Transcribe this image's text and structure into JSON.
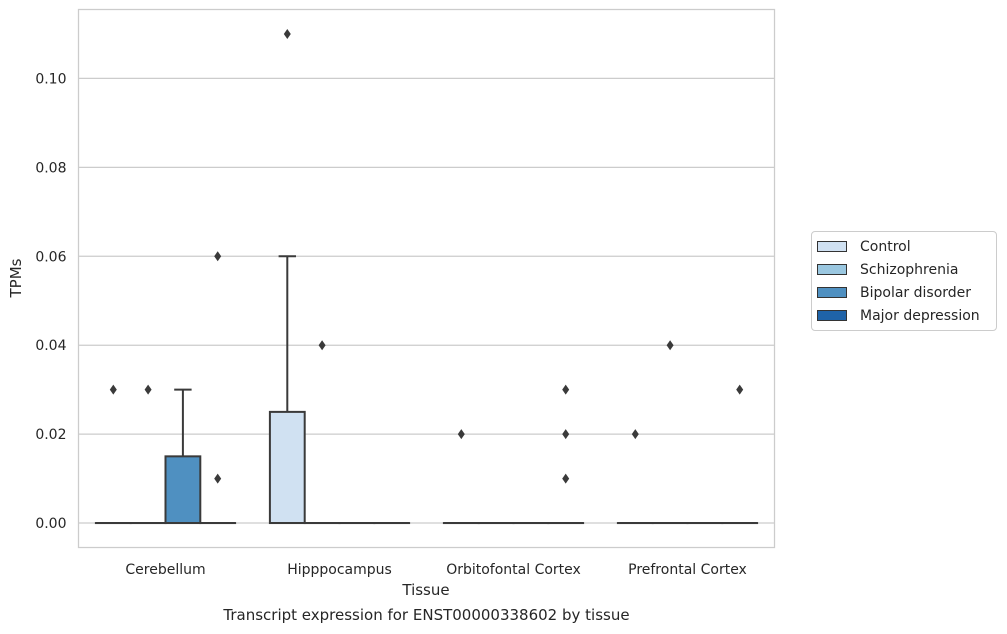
{
  "chart_data": {
    "type": "box",
    "xlabel": "Tissue",
    "ylabel": "TPMs",
    "caption": "Transcript expression for ENST00000338602 by tissue",
    "categories": [
      "Cerebellum",
      "Hipppocampus",
      "Orbitofontal Cortex",
      "Prefrontal Cortex"
    ],
    "ylim": [
      -0.0055,
      0.1155
    ],
    "yticks": [
      0.0,
      0.02,
      0.04,
      0.06,
      0.08,
      0.1
    ],
    "ytick_labels": [
      "0.00",
      "0.02",
      "0.04",
      "0.06",
      "0.08",
      "0.10"
    ],
    "grid": true,
    "legend_position": "right",
    "series": [
      {
        "name": "Control",
        "color": "#d0e1f2",
        "boxes": [
          {
            "q1": 0,
            "median": 0,
            "q3": 0,
            "whisker_low": 0,
            "whisker_high": 0,
            "outliers": [
              0.03
            ]
          },
          {
            "q1": 0,
            "median": 0,
            "q3": 0.025,
            "whisker_low": 0,
            "whisker_high": 0.06,
            "outliers": [
              0.11
            ]
          },
          {
            "q1": 0,
            "median": 0,
            "q3": 0,
            "whisker_low": 0,
            "whisker_high": 0,
            "outliers": [
              0.02
            ]
          },
          {
            "q1": 0,
            "median": 0,
            "q3": 0,
            "whisker_low": 0,
            "whisker_high": 0,
            "outliers": [
              0.02
            ]
          }
        ]
      },
      {
        "name": "Schizophrenia",
        "color": "#9ac7e0",
        "boxes": [
          {
            "q1": 0,
            "median": 0,
            "q3": 0,
            "whisker_low": 0,
            "whisker_high": 0,
            "outliers": [
              0.03
            ]
          },
          {
            "q1": 0,
            "median": 0,
            "q3": 0,
            "whisker_low": 0,
            "whisker_high": 0,
            "outliers": [
              0.04
            ]
          },
          {
            "q1": 0,
            "median": 0,
            "q3": 0,
            "whisker_low": 0,
            "whisker_high": 0,
            "outliers": []
          },
          {
            "q1": 0,
            "median": 0,
            "q3": 0,
            "whisker_low": 0,
            "whisker_high": 0,
            "outliers": [
              0.04
            ]
          }
        ]
      },
      {
        "name": "Bipolar disorder",
        "color": "#4f90c1",
        "boxes": [
          {
            "q1": 0,
            "median": 0,
            "q3": 0.015,
            "whisker_low": 0,
            "whisker_high": 0.03,
            "outliers": []
          },
          {
            "q1": 0,
            "median": 0,
            "q3": 0,
            "whisker_low": 0,
            "whisker_high": 0,
            "outliers": []
          },
          {
            "q1": 0,
            "median": 0,
            "q3": 0,
            "whisker_low": 0,
            "whisker_high": 0,
            "outliers": []
          },
          {
            "q1": 0,
            "median": 0,
            "q3": 0,
            "whisker_low": 0,
            "whisker_high": 0,
            "outliers": []
          }
        ]
      },
      {
        "name": "Major depression",
        "color": "#1f63a8",
        "boxes": [
          {
            "q1": 0,
            "median": 0,
            "q3": 0,
            "whisker_low": 0,
            "whisker_high": 0,
            "outliers": [
              0.06,
              0.01
            ]
          },
          {
            "q1": 0,
            "median": 0,
            "q3": 0,
            "whisker_low": 0,
            "whisker_high": 0,
            "outliers": []
          },
          {
            "q1": 0,
            "median": 0,
            "q3": 0,
            "whisker_low": 0,
            "whisker_high": 0,
            "outliers": [
              0.03,
              0.02,
              0.01
            ]
          },
          {
            "q1": 0,
            "median": 0,
            "q3": 0,
            "whisker_low": 0,
            "whisker_high": 0,
            "outliers": [
              0.03
            ]
          }
        ]
      }
    ]
  }
}
